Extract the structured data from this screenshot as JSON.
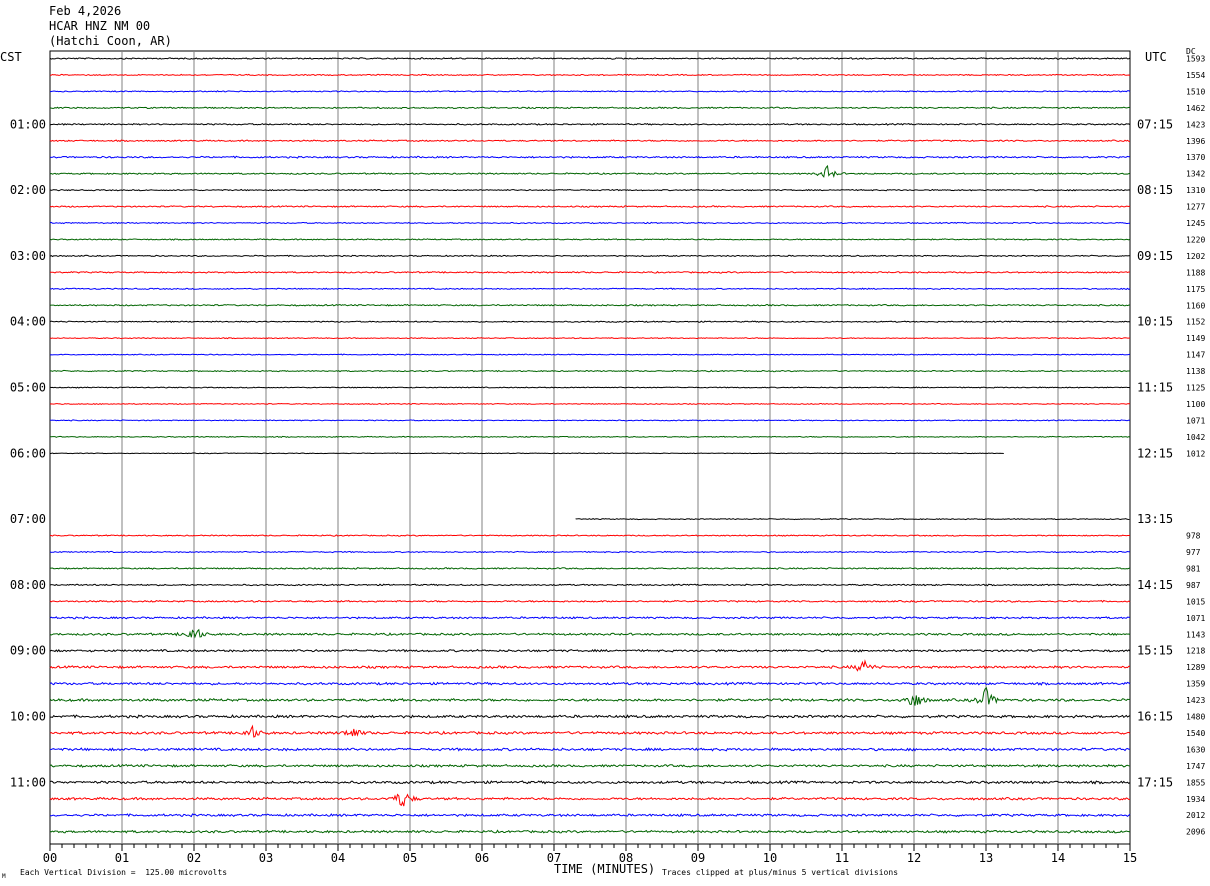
{
  "header": {
    "date": "Feb 4,2026",
    "station": "HCAR HNZ NM 00",
    "location": "(Hatchi Coon, AR)"
  },
  "left_zone_label": "CST",
  "right_zone_label": "UTC",
  "dc_label": "DC",
  "footer": {
    "scale_note": "Each Vertical Division =  125.00 microvolts",
    "clip_note": "Traces clipped at plus/minus 5 vertical divisions",
    "corner_mark": "M"
  },
  "colors": {
    "trace_cycle": [
      "#000000",
      "#ff0000",
      "#0000ff",
      "#006400"
    ],
    "grid": "#808080"
  },
  "chart_data": {
    "type": "seismogram-helicorder",
    "xlabel": "TIME (MINUTES)",
    "x_range": [
      0,
      15
    ],
    "x_ticks": [
      "00",
      "01",
      "02",
      "03",
      "04",
      "05",
      "06",
      "07",
      "08",
      "09",
      "10",
      "11",
      "12",
      "13",
      "14",
      "15"
    ],
    "minutes_per_line": 15,
    "lines": [
      {
        "dc": "1593",
        "cst": "",
        "utc": ""
      },
      {
        "dc": "1554",
        "cst": "",
        "utc": ""
      },
      {
        "dc": "1510",
        "cst": "",
        "utc": ""
      },
      {
        "dc": "1462",
        "cst": "",
        "utc": ""
      },
      {
        "dc": "1423",
        "cst": "01:00",
        "utc": "07:15"
      },
      {
        "dc": "1396",
        "cst": "",
        "utc": ""
      },
      {
        "dc": "1370",
        "cst": "",
        "utc": ""
      },
      {
        "dc": "1342",
        "cst": "",
        "utc": "",
        "events": [
          {
            "t": 10.8,
            "amp": 1.3
          }
        ]
      },
      {
        "dc": "1310",
        "cst": "02:00",
        "utc": "08:15"
      },
      {
        "dc": "1277",
        "cst": "",
        "utc": ""
      },
      {
        "dc": "1245",
        "cst": "",
        "utc": ""
      },
      {
        "dc": "1220",
        "cst": "",
        "utc": ""
      },
      {
        "dc": "1202",
        "cst": "03:00",
        "utc": "09:15"
      },
      {
        "dc": "1188",
        "cst": "",
        "utc": ""
      },
      {
        "dc": "1175",
        "cst": "",
        "utc": ""
      },
      {
        "dc": "1160",
        "cst": "",
        "utc": ""
      },
      {
        "dc": "1152",
        "cst": "04:00",
        "utc": "10:15"
      },
      {
        "dc": "1149",
        "cst": "",
        "utc": ""
      },
      {
        "dc": "1147",
        "cst": "",
        "utc": ""
      },
      {
        "dc": "1138",
        "cst": "",
        "utc": ""
      },
      {
        "dc": "1125",
        "cst": "05:00",
        "utc": "11:15"
      },
      {
        "dc": "1100",
        "cst": "",
        "utc": ""
      },
      {
        "dc": "1071",
        "cst": "",
        "utc": ""
      },
      {
        "dc": "1042",
        "cst": "",
        "utc": ""
      },
      {
        "dc": "1012",
        "cst": "06:00",
        "utc": "12:15",
        "range": [
          0,
          13.25
        ]
      },
      {
        "dc": "",
        "cst": "",
        "utc": "",
        "range": null
      },
      {
        "dc": "",
        "cst": "",
        "utc": "",
        "range": null
      },
      {
        "dc": "",
        "cst": "",
        "utc": "",
        "range": null
      },
      {
        "dc": "",
        "cst": "07:00",
        "utc": "13:15",
        "range": [
          7.3,
          15
        ]
      },
      {
        "dc": "978",
        "cst": "",
        "utc": ""
      },
      {
        "dc": "977",
        "cst": "",
        "utc": ""
      },
      {
        "dc": "981",
        "cst": "",
        "utc": ""
      },
      {
        "dc": "987",
        "cst": "08:00",
        "utc": "14:15"
      },
      {
        "dc": "1015",
        "cst": "",
        "utc": ""
      },
      {
        "dc": "1071",
        "cst": "",
        "utc": ""
      },
      {
        "dc": "1143",
        "cst": "",
        "utc": "",
        "events": [
          {
            "t": 2.0,
            "amp": 1.6
          }
        ]
      },
      {
        "dc": "1218",
        "cst": "09:00",
        "utc": "15:15"
      },
      {
        "dc": "1289",
        "cst": "",
        "utc": "",
        "events": [
          {
            "t": 11.3,
            "amp": 1.3
          }
        ]
      },
      {
        "dc": "1359",
        "cst": "",
        "utc": ""
      },
      {
        "dc": "1423",
        "cst": "",
        "utc": "",
        "events": [
          {
            "t": 12.0,
            "amp": 1.8
          },
          {
            "t": 13.0,
            "amp": 2.0
          }
        ]
      },
      {
        "dc": "1480",
        "cst": "10:00",
        "utc": "16:15"
      },
      {
        "dc": "1540",
        "cst": "",
        "utc": "",
        "events": [
          {
            "t": 2.8,
            "amp": 1.2
          },
          {
            "t": 4.2,
            "amp": 1.0
          }
        ]
      },
      {
        "dc": "1630",
        "cst": "",
        "utc": ""
      },
      {
        "dc": "1747",
        "cst": "",
        "utc": ""
      },
      {
        "dc": "1855",
        "cst": "11:00",
        "utc": "17:15"
      },
      {
        "dc": "1934",
        "cst": "",
        "utc": "",
        "events": [
          {
            "t": 4.9,
            "amp": 1.8
          }
        ]
      },
      {
        "dc": "2012",
        "cst": "",
        "utc": ""
      },
      {
        "dc": "2096",
        "cst": "",
        "utc": ""
      }
    ],
    "noise_level": [
      0.6,
      0.5,
      0.5,
      0.6,
      0.6,
      0.6,
      0.7,
      0.6,
      0.5,
      0.6,
      0.5,
      0.5,
      0.5,
      0.6,
      0.5,
      0.6,
      0.5,
      0.4,
      0.4,
      0.5,
      0.4,
      0.4,
      0.4,
      0.4,
      0.3,
      0,
      0,
      0,
      0.4,
      0.5,
      0.5,
      0.6,
      0.6,
      0.7,
      0.8,
      0.9,
      0.9,
      1.0,
      1.0,
      1.1,
      1.1,
      1.1,
      1.1,
      1.0,
      1.1,
      1.0,
      1.0,
      1.0
    ]
  }
}
